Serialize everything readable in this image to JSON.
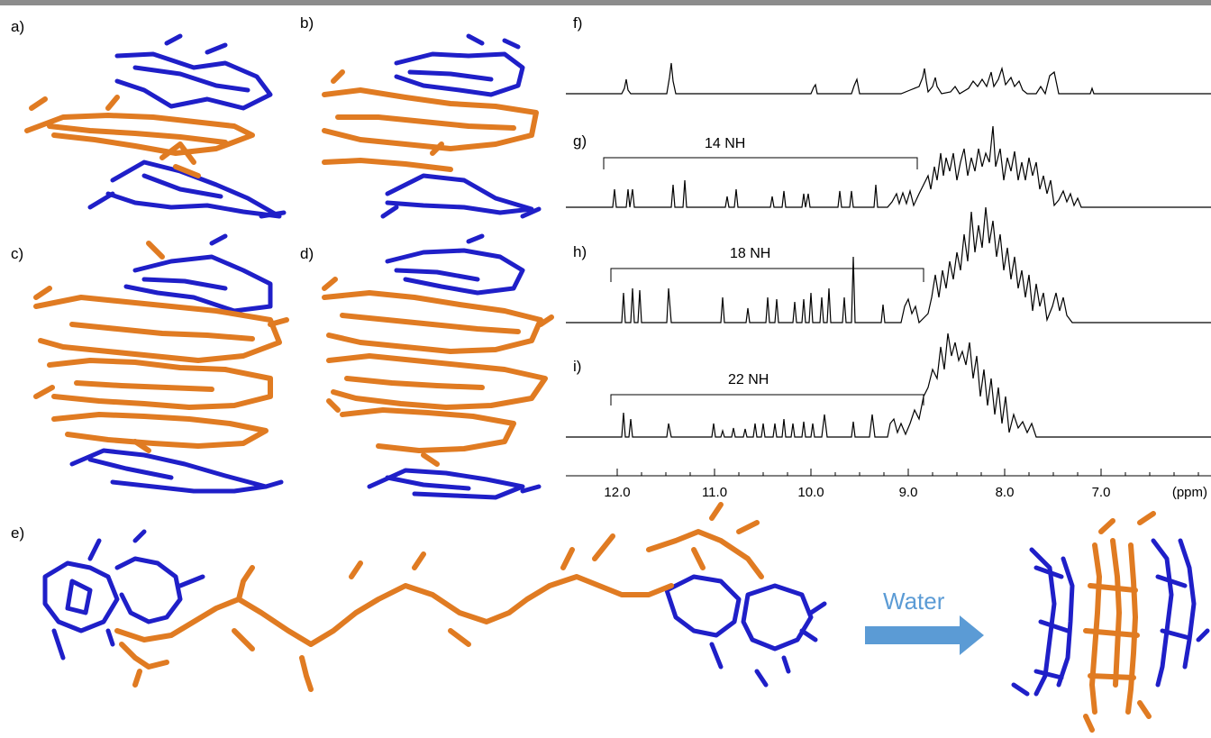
{
  "figure": {
    "panels": {
      "a": "a)",
      "b": "b)",
      "c": "c)",
      "d": "d)",
      "e": "e)",
      "f": "f)",
      "g": "g)",
      "h": "h)",
      "i": "i)"
    },
    "nmr": {
      "g_bracket": "14 NH",
      "h_bracket": "18 NH",
      "i_bracket": "22 NH",
      "axis_ticks": [
        "12.0",
        "11.0",
        "10.0",
        "9.0",
        "8.0",
        "7.0"
      ],
      "axis_unit": "(ppm)"
    },
    "arrow_label": "Water",
    "colors": {
      "terminal_units": "#1f1fc8",
      "helix_units": "#e07b22",
      "arrow": "#5b9bd5",
      "top_bar": "#8c8c8c"
    }
  }
}
